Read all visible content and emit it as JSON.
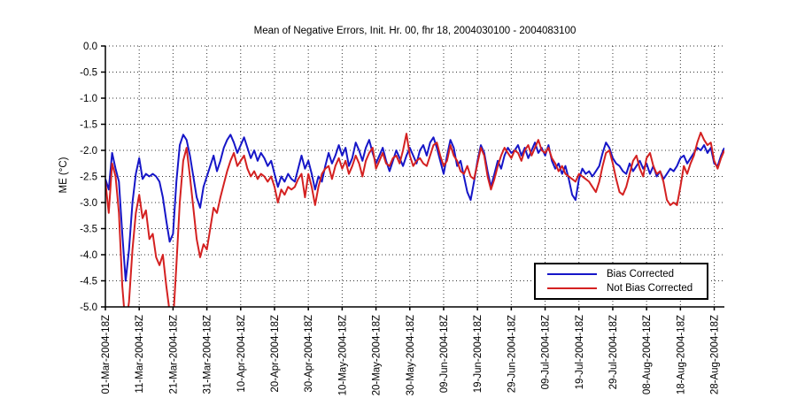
{
  "chart_data": {
    "type": "line",
    "title": "Mean of Negative Errors, Init. Hr. 00, fhr 18, 2004030100 - 2004083100",
    "xlabel": "",
    "ylabel": "ME (°C)",
    "ylim": [
      -5.0,
      0.0
    ],
    "y_tick_labels": [
      "0.0",
      "-0.5",
      "-1.0",
      "-1.5",
      "-2.0",
      "-2.5",
      "-3.0",
      "-3.5",
      "-4.0",
      "-4.5",
      "-5.0"
    ],
    "y_tick_values": [
      0.0,
      -0.5,
      -1.0,
      -1.5,
      -2.0,
      -2.5,
      -3.0,
      -3.5,
      -4.0,
      -4.5,
      -5.0
    ],
    "x_tick_labels": [
      "01-Mar-2004-18Z",
      "11-Mar-2004-18Z",
      "21-Mar-2004-18Z",
      "31-Mar-2004-18Z",
      "10-Apr-2004-18Z",
      "20-Apr-2004-18Z",
      "30-Apr-2004-18Z",
      "10-May-2004-18Z",
      "20-May-2004-18Z",
      "30-May-2004-18Z",
      "09-Jun-2004-18Z",
      "19-Jun-2004-18Z",
      "29-Jun-2004-18Z",
      "09-Jul-2004-18Z",
      "19-Jul-2004-18Z",
      "29-Jul-2004-18Z",
      "08-Aug-2004-18Z",
      "18-Aug-2004-18Z",
      "28-Aug-2004-18Z"
    ],
    "x_tick_days": [
      0,
      10,
      20,
      30,
      40,
      50,
      60,
      70,
      80,
      90,
      100,
      110,
      120,
      130,
      140,
      150,
      160,
      170,
      180
    ],
    "x_range_days": [
      0,
      183
    ],
    "grid": "dotted",
    "legend_position": "inside-lower-right",
    "series": [
      {
        "name": "Bias Corrected",
        "color": "#1616c8",
        "values": [
          -2.55,
          -2.75,
          -2.05,
          -2.35,
          -2.6,
          -3.6,
          -4.5,
          -3.9,
          -3.0,
          -2.45,
          -2.15,
          -2.55,
          -2.45,
          -2.5,
          -2.45,
          -2.5,
          -2.6,
          -2.9,
          -3.35,
          -3.75,
          -3.6,
          -2.6,
          -1.9,
          -1.7,
          -1.8,
          -2.1,
          -2.5,
          -2.9,
          -3.1,
          -2.7,
          -2.5,
          -2.3,
          -2.1,
          -2.4,
          -2.2,
          -1.95,
          -1.8,
          -1.7,
          -1.85,
          -2.05,
          -1.9,
          -1.75,
          -1.95,
          -2.15,
          -2.0,
          -2.2,
          -2.05,
          -2.15,
          -2.3,
          -2.2,
          -2.45,
          -2.7,
          -2.5,
          -2.6,
          -2.45,
          -2.55,
          -2.6,
          -2.35,
          -2.1,
          -2.35,
          -2.2,
          -2.45,
          -2.75,
          -2.5,
          -2.6,
          -2.3,
          -2.05,
          -2.25,
          -2.1,
          -1.9,
          -2.1,
          -1.95,
          -2.3,
          -2.15,
          -1.85,
          -2.0,
          -2.2,
          -1.95,
          -1.8,
          -2.05,
          -2.25,
          -2.1,
          -1.95,
          -2.2,
          -2.4,
          -2.2,
          -2.0,
          -2.15,
          -2.3,
          -2.1,
          -1.95,
          -2.1,
          -2.25,
          -2.0,
          -1.9,
          -2.1,
          -1.85,
          -1.75,
          -1.95,
          -2.2,
          -2.45,
          -2.1,
          -1.8,
          -1.95,
          -2.3,
          -2.2,
          -2.5,
          -2.8,
          -2.95,
          -2.6,
          -2.2,
          -1.9,
          -2.05,
          -2.4,
          -2.7,
          -2.45,
          -2.2,
          -2.35,
          -2.1,
          -1.95,
          -2.05,
          -2.0,
          -1.9,
          -2.1,
          -1.95,
          -2.15,
          -2.0,
          -1.85,
          -2.05,
          -1.95,
          -2.1,
          -1.9,
          -2.2,
          -2.35,
          -2.25,
          -2.45,
          -2.3,
          -2.55,
          -2.85,
          -2.95,
          -2.55,
          -2.35,
          -2.45,
          -2.4,
          -2.5,
          -2.4,
          -2.3,
          -2.05,
          -1.85,
          -1.95,
          -2.15,
          -2.25,
          -2.3,
          -2.4,
          -2.45,
          -2.25,
          -2.4,
          -2.3,
          -2.2,
          -2.35,
          -2.25,
          -2.45,
          -2.3,
          -2.5,
          -2.4,
          -2.55,
          -2.45,
          -2.35,
          -2.4,
          -2.3,
          -2.15,
          -2.1,
          -2.25,
          -2.15,
          -2.05,
          -1.95,
          -2.0,
          -1.9,
          -2.05,
          -1.95,
          -2.25,
          -2.3,
          -2.1,
          -1.95
        ]
      },
      {
        "name": "Not Bias Corrected",
        "color": "#d42121",
        "values": [
          -2.6,
          -3.2,
          -2.25,
          -2.5,
          -3.2,
          -4.6,
          -5.4,
          -4.9,
          -3.9,
          -3.2,
          -2.85,
          -3.3,
          -3.15,
          -3.7,
          -3.6,
          -4.05,
          -4.2,
          -4.0,
          -4.6,
          -5.1,
          -5.3,
          -4.2,
          -3.0,
          -2.2,
          -1.95,
          -2.5,
          -3.1,
          -3.7,
          -4.05,
          -3.8,
          -3.9,
          -3.5,
          -3.1,
          -3.2,
          -2.9,
          -2.65,
          -2.4,
          -2.2,
          -2.05,
          -2.3,
          -2.2,
          -2.1,
          -2.35,
          -2.5,
          -2.4,
          -2.55,
          -2.45,
          -2.5,
          -2.6,
          -2.5,
          -2.7,
          -3.0,
          -2.75,
          -2.85,
          -2.7,
          -2.75,
          -2.7,
          -2.55,
          -2.45,
          -2.9,
          -2.45,
          -2.7,
          -3.05,
          -2.7,
          -2.45,
          -2.35,
          -2.3,
          -2.55,
          -2.3,
          -2.15,
          -2.35,
          -2.2,
          -2.45,
          -2.3,
          -2.1,
          -2.25,
          -2.5,
          -2.2,
          -2.05,
          -1.95,
          -2.35,
          -2.2,
          -2.05,
          -2.25,
          -2.3,
          -2.15,
          -2.1,
          -2.25,
          -2.0,
          -1.68,
          -2.1,
          -2.3,
          -2.2,
          -2.15,
          -2.25,
          -2.3,
          -2.1,
          -1.9,
          -1.85,
          -2.1,
          -2.3,
          -2.2,
          -1.9,
          -2.1,
          -2.2,
          -2.4,
          -2.45,
          -2.3,
          -2.5,
          -2.55,
          -2.25,
          -1.95,
          -2.1,
          -2.5,
          -2.75,
          -2.55,
          -2.3,
          -2.1,
          -1.95,
          -2.05,
          -2.15,
          -2.0,
          -2.05,
          -2.2,
          -2.0,
          -1.9,
          -2.1,
          -1.95,
          -1.8,
          -2.0,
          -2.05,
          -1.95,
          -2.15,
          -2.25,
          -2.4,
          -2.3,
          -2.45,
          -2.5,
          -2.55,
          -2.6,
          -2.45,
          -2.5,
          -2.55,
          -2.6,
          -2.7,
          -2.8,
          -2.6,
          -2.3,
          -2.05,
          -2.0,
          -2.25,
          -2.55,
          -2.8,
          -2.85,
          -2.7,
          -2.45,
          -2.2,
          -2.1,
          -2.35,
          -2.5,
          -2.15,
          -2.05,
          -2.3,
          -2.45,
          -2.4,
          -2.6,
          -2.95,
          -3.05,
          -3.0,
          -3.05,
          -2.7,
          -2.3,
          -2.45,
          -2.25,
          -2.1,
          -1.85,
          -1.66,
          -1.8,
          -1.9,
          -1.85,
          -2.2,
          -2.35,
          -2.15,
          -2.0
        ]
      }
    ]
  }
}
